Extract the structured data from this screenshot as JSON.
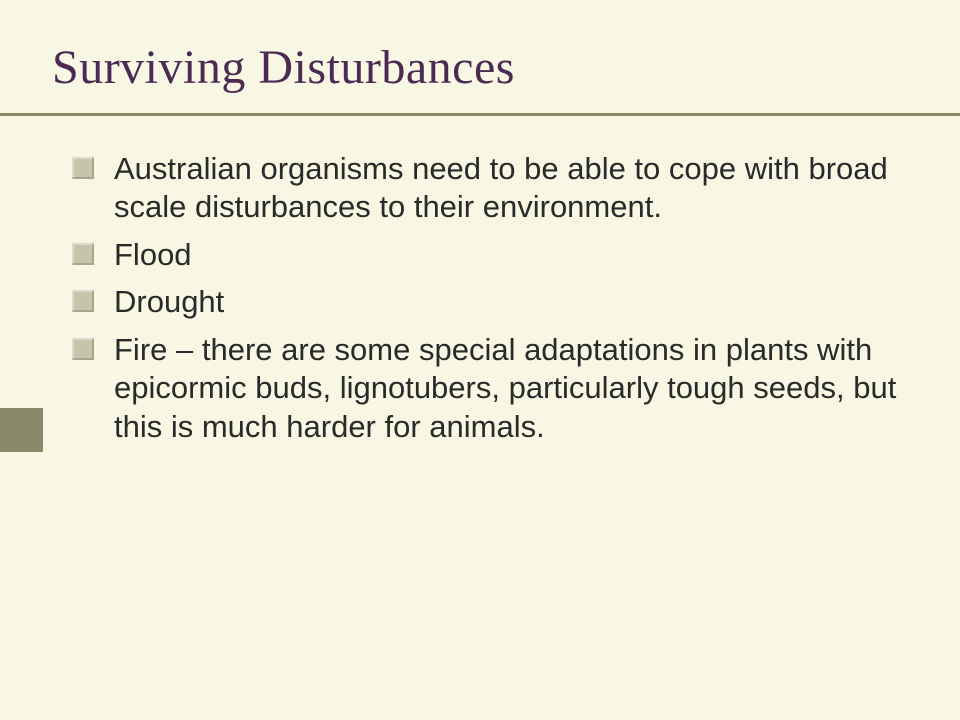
{
  "slide": {
    "title": "Surviving Disturbances",
    "title_color": "#4b2a53",
    "title_fontsize": 48,
    "background_color": "#f7f7e3",
    "rule_color": "#8a8a6a",
    "left_bar_color": "#8a8a6a",
    "bullet_square_color": "#c5c5aa",
    "body_color": "#2a2a2a",
    "body_fontsize": 31,
    "bullets": [
      "Australian organisms need to be able to cope with broad scale disturbances to their environment.",
      "Flood",
      "Drought",
      "Fire – there are some special adaptations in plants with epicormic buds, lignotubers, particularly tough seeds, but this is much harder for animals."
    ]
  }
}
